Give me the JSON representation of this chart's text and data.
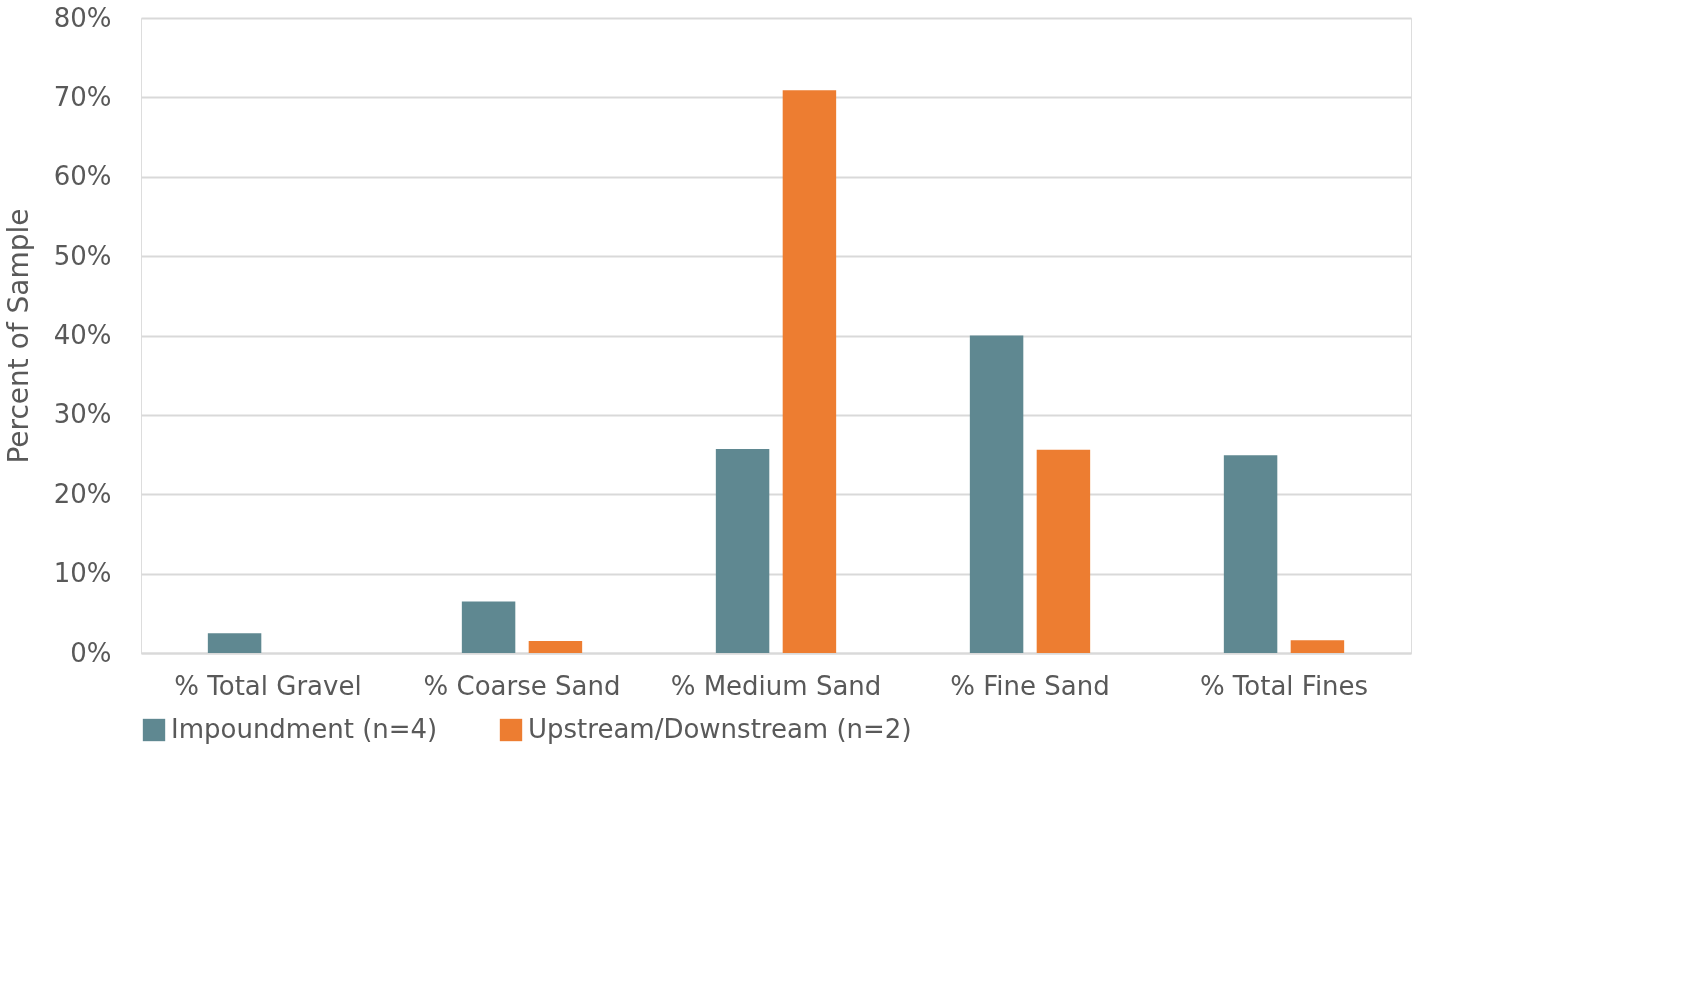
{
  "chart_data": {
    "type": "bar",
    "ylabel": "Percent of Sample",
    "categories": [
      "% Total Gravel",
      "% Coarse Sand",
      "% Medium Sand",
      "% Fine Sand",
      "% Total Fines"
    ],
    "series": [
      {
        "name": "Impoundment (n=4)",
        "color": "#5f8891",
        "values": [
          2.5,
          6.5,
          25.7,
          40,
          24.9
        ]
      },
      {
        "name": "Upstream/Downstream (n=2)",
        "color": "#ed7d31",
        "values": [
          0,
          1.5,
          70.9,
          25.6,
          1.6
        ]
      }
    ],
    "ylim": [
      0,
      80
    ],
    "yticks": [
      {
        "value": 0,
        "label": "0%"
      },
      {
        "value": 10,
        "label": "10%"
      },
      {
        "value": 20,
        "label": "20%"
      },
      {
        "value": 30,
        "label": "30%"
      },
      {
        "value": 40,
        "label": "40%"
      },
      {
        "value": 50,
        "label": "50%"
      },
      {
        "value": 60,
        "label": "60%"
      },
      {
        "value": 70,
        "label": "70%"
      },
      {
        "value": 80,
        "label": "80%"
      }
    ],
    "grid": "y",
    "legend": "bottom"
  }
}
